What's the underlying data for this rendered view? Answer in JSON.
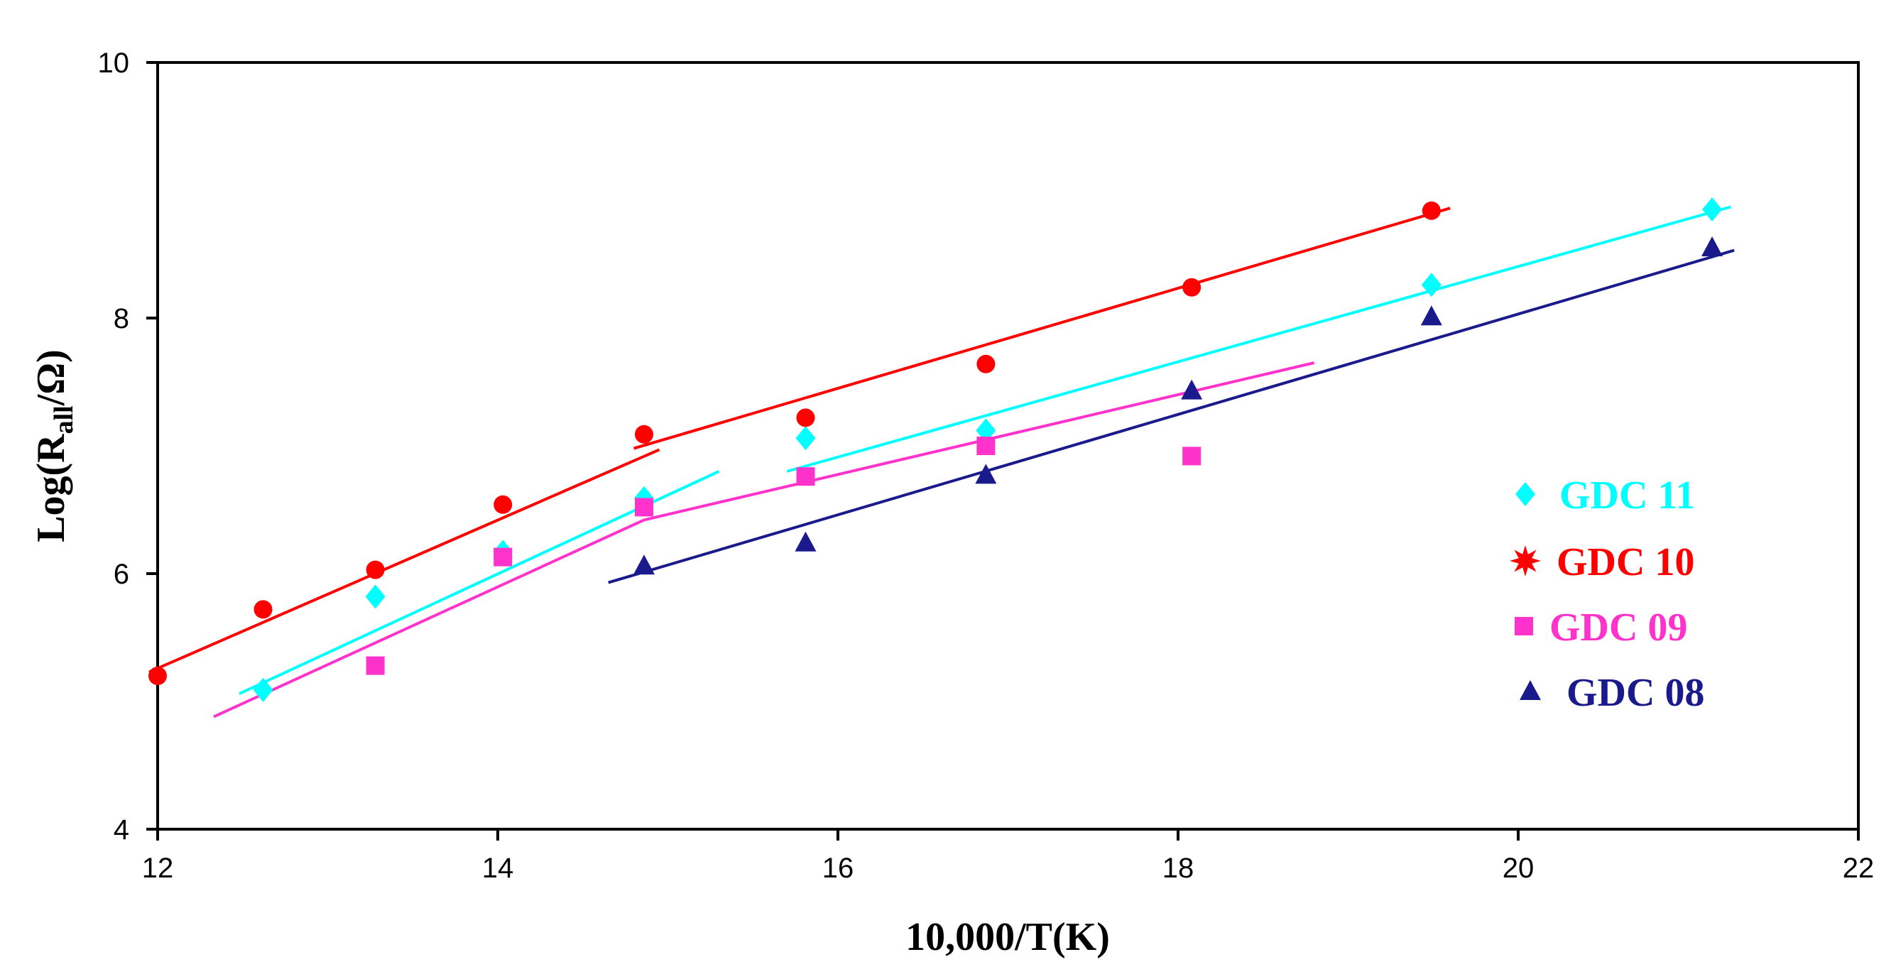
{
  "chart_data": {
    "type": "scatter",
    "title": "",
    "xlabel": "10,000/T(K)",
    "ylabel_main": "Log(R",
    "ylabel_sub": "all",
    "ylabel_tail": "/Ω)",
    "xlim": [
      12,
      22
    ],
    "ylim": [
      4,
      10
    ],
    "xticks": [
      12,
      14,
      16,
      18,
      20,
      22
    ],
    "yticks": [
      4,
      6,
      8,
      10
    ],
    "xtick_labels": [
      "12",
      "14",
      "16",
      "18",
      "20",
      "22"
    ],
    "ytick_labels": [
      "4",
      "6",
      "8",
      "10"
    ],
    "legend_position": "right",
    "series": [
      {
        "name": "GDC 11",
        "color": "#00ffff",
        "marker": "diamond",
        "points": [
          [
            12.62,
            5.09
          ],
          [
            13.28,
            5.82
          ],
          [
            14.03,
            6.17
          ],
          [
            14.86,
            6.59
          ],
          [
            15.81,
            7.06
          ],
          [
            16.87,
            7.12
          ],
          [
            19.49,
            8.26
          ],
          [
            21.14,
            8.85
          ]
        ],
        "fits": [
          [
            [
              12.48,
              5.06
            ],
            [
              15.3,
              6.8
            ]
          ],
          [
            [
              15.7,
              6.8
            ],
            [
              21.25,
              8.87
            ]
          ]
        ]
      },
      {
        "name": "GDC 10",
        "color": "#ff0000",
        "marker": "circle",
        "points": [
          [
            12.0,
            5.2
          ],
          [
            12.62,
            5.72
          ],
          [
            13.28,
            6.03
          ],
          [
            14.03,
            6.54
          ],
          [
            14.86,
            7.09
          ],
          [
            15.81,
            7.22
          ],
          [
            16.87,
            7.64
          ],
          [
            18.08,
            8.24
          ],
          [
            19.49,
            8.84
          ]
        ],
        "fits": [
          [
            [
              11.95,
              5.23
            ],
            [
              14.95,
              6.97
            ]
          ],
          [
            [
              14.8,
              6.98
            ],
            [
              19.6,
              8.86
            ]
          ]
        ]
      },
      {
        "name": "GDC 09",
        "color": "#ff33cc",
        "marker": "square",
        "points": [
          [
            13.28,
            5.28
          ],
          [
            14.03,
            6.13
          ],
          [
            14.86,
            6.52
          ],
          [
            15.81,
            6.76
          ],
          [
            16.87,
            7.0
          ],
          [
            18.08,
            6.92
          ]
        ],
        "fits": [
          [
            [
              12.33,
              4.88
            ],
            [
              14.86,
              6.42
            ]
          ],
          [
            [
              14.86,
              6.42
            ],
            [
              18.8,
              7.65
            ]
          ]
        ]
      },
      {
        "name": "GDC 08",
        "color": "#1a1a8c",
        "marker": "triangle",
        "points": [
          [
            14.86,
            6.06
          ],
          [
            15.81,
            6.24
          ],
          [
            16.87,
            6.77
          ],
          [
            18.08,
            7.43
          ],
          [
            19.49,
            8.01
          ],
          [
            21.14,
            8.55
          ]
        ],
        "fits": [
          [
            [
              14.65,
              5.93
            ],
            [
              21.27,
              8.53
            ]
          ]
        ]
      }
    ]
  }
}
